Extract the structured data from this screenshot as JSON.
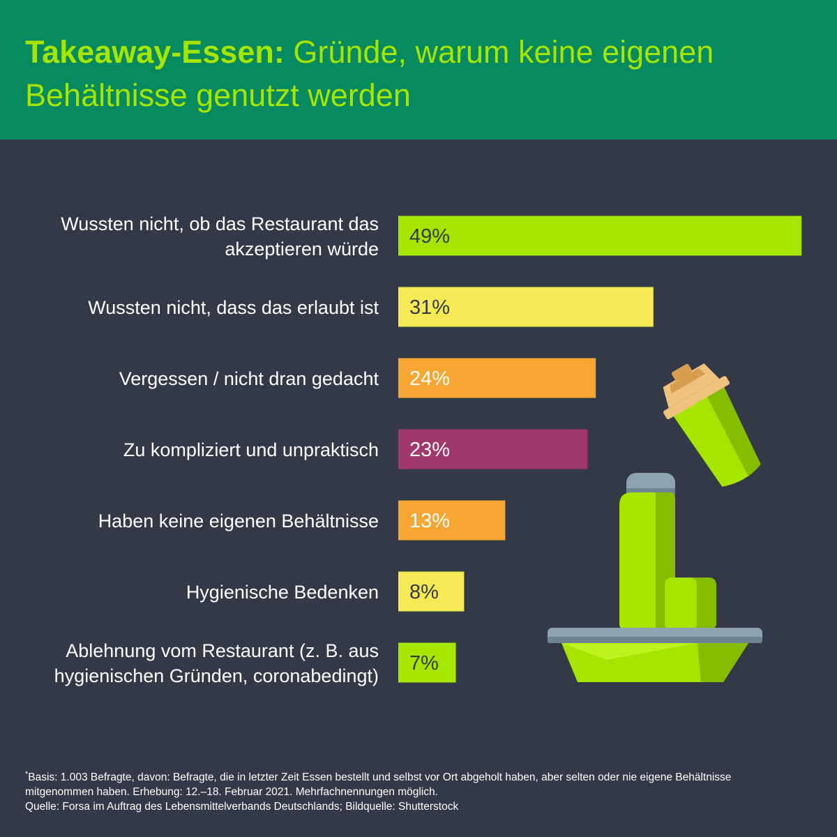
{
  "header": {
    "title_bold": "Takeaway-Essen:",
    "title_rest": "Gründe, warum keine eigenen Behältnisse genutzt werden"
  },
  "colors": {
    "background": "#343948",
    "header": "#068a60",
    "title": "#a6e500",
    "green": "#a6e500",
    "yellow": "#f5ea55",
    "orange": "#f6a632",
    "purple": "#a1386b"
  },
  "chart_data": {
    "type": "bar",
    "orientation": "horizontal",
    "categories": [
      [
        "Wussten nicht, ob das Restaurant das",
        "akzeptieren würde"
      ],
      [
        "Wussten nicht, dass das erlaubt ist"
      ],
      [
        "Vergessen / nicht dran gedacht"
      ],
      [
        "Zu kompliziert und unpraktisch"
      ],
      [
        "Haben keine eigenen Behältnisse"
      ],
      [
        "Hygienische Bedenken"
      ],
      [
        "Ablehnung vom Restaurant (z. B. aus",
        "hygienischen Gründen, coronabedingt)"
      ]
    ],
    "values": [
      49,
      31,
      24,
      23,
      13,
      8,
      7
    ],
    "value_labels": [
      "49%",
      "31%",
      "24%",
      "23%",
      "13%",
      "8%",
      "7%"
    ],
    "bar_colors": [
      "#a6e500",
      "#f5ea55",
      "#f6a632",
      "#a1386b",
      "#f6a632",
      "#f5ea55",
      "#a6e500"
    ],
    "label_colors": [
      "#343948",
      "#343948",
      "#ffffff",
      "#ffffff",
      "#ffffff",
      "#343948",
      "#343948"
    ],
    "unit": "%",
    "grid": false,
    "legend": "none"
  },
  "illustration": {
    "subject": "reusable takeaway containers: cup with lid, thermos bottle, food container",
    "icon_name": "reusable-containers-illustration"
  },
  "footer": {
    "asterisk": "*",
    "basis": "Basis: 1.003 Befragte, davon: Befragte, die in letzter Zeit Essen bestellt und selbst vor Ort abgeholt haben, aber selten oder nie eigene Behältnisse",
    "basis_cont": "mitgenommen haben. Erhebung: 12.–18. Februar 2021. Mehrfachnennungen möglich.",
    "source": "Quelle: Forsa im Auftrag des Lebensmittelverbands Deutschlands; Bildquelle: Shutterstock"
  }
}
